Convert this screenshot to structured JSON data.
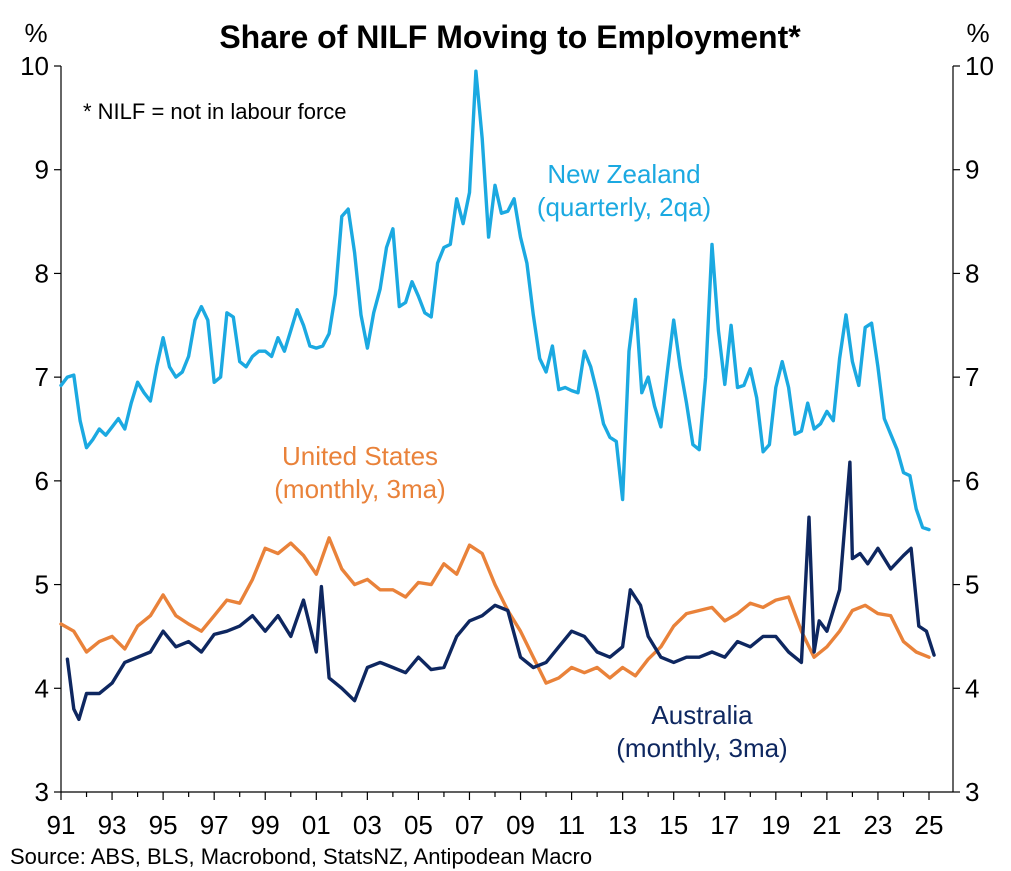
{
  "chart_data": {
    "type": "line",
    "title": "Share of NILF Moving to Employment*",
    "ylabel_left": "%",
    "ylabel_right": "%",
    "note": "* NILF = not in labour force",
    "source": "Source: ABS, BLS, Macrobond, StatsNZ, Antipodean Macro",
    "ylim": [
      3,
      10
    ],
    "yticks": [
      "3",
      "4",
      "5",
      "6",
      "7",
      "8",
      "9",
      "10"
    ],
    "xlim": [
      1991,
      2026
    ],
    "xticks": [
      "91",
      "93",
      "95",
      "97",
      "99",
      "01",
      "03",
      "05",
      "07",
      "09",
      "11",
      "13",
      "15",
      "17",
      "19",
      "21",
      "23",
      "25"
    ],
    "grid": false,
    "series": [
      {
        "name": "New Zealand (quarterly, 2qa)",
        "label_lines": [
          "New Zealand",
          "(quarterly, 2qa)"
        ],
        "color": "#1ba9e1",
        "x": [
          1991.0,
          1991.25,
          1991.5,
          1991.75,
          1992.0,
          1992.25,
          1992.5,
          1992.75,
          1993.0,
          1993.25,
          1993.5,
          1993.75,
          1994.0,
          1994.25,
          1994.5,
          1994.75,
          1995.0,
          1995.25,
          1995.5,
          1995.75,
          1996.0,
          1996.25,
          1996.5,
          1996.75,
          1997.0,
          1997.25,
          1997.5,
          1997.75,
          1998.0,
          1998.25,
          1998.5,
          1998.75,
          1999.0,
          1999.25,
          1999.5,
          1999.75,
          2000.0,
          2000.25,
          2000.5,
          2000.75,
          2001.0,
          2001.25,
          2001.5,
          2001.75,
          2002.0,
          2002.25,
          2002.5,
          2002.75,
          2003.0,
          2003.25,
          2003.5,
          2003.75,
          2004.0,
          2004.25,
          2004.5,
          2004.75,
          2005.0,
          2005.25,
          2005.5,
          2005.75,
          2006.0,
          2006.25,
          2006.5,
          2006.75,
          2007.0,
          2007.25,
          2007.5,
          2007.75,
          2008.0,
          2008.25,
          2008.5,
          2008.75,
          2009.0,
          2009.25,
          2009.5,
          2009.75,
          2010.0,
          2010.25,
          2010.5,
          2010.75,
          2011.0,
          2011.25,
          2011.5,
          2011.75,
          2012.0,
          2012.25,
          2012.5,
          2012.75,
          2013.0,
          2013.25,
          2013.5,
          2013.75,
          2014.0,
          2014.25,
          2014.5,
          2014.75,
          2015.0,
          2015.25,
          2015.5,
          2015.75,
          2016.0,
          2016.25,
          2016.5,
          2016.75,
          2017.0,
          2017.25,
          2017.5,
          2017.75,
          2018.0,
          2018.25,
          2018.5,
          2018.75,
          2019.0,
          2019.25,
          2019.5,
          2019.75,
          2020.0,
          2020.25,
          2020.5,
          2020.75,
          2021.0,
          2021.25,
          2021.5,
          2021.75,
          2022.0,
          2022.25,
          2022.5,
          2022.75,
          2023.0,
          2023.25,
          2023.5,
          2023.75,
          2024.0,
          2024.25,
          2024.5,
          2024.75,
          2025.0
        ],
        "values": [
          6.92,
          7.0,
          7.02,
          6.58,
          6.32,
          6.4,
          6.5,
          6.44,
          6.52,
          6.6,
          6.5,
          6.75,
          6.95,
          6.85,
          6.77,
          7.1,
          7.38,
          7.1,
          7.0,
          7.05,
          7.2,
          7.55,
          7.68,
          7.55,
          6.95,
          7.0,
          7.62,
          7.58,
          7.15,
          7.1,
          7.2,
          7.25,
          7.25,
          7.2,
          7.38,
          7.25,
          7.45,
          7.65,
          7.5,
          7.3,
          7.28,
          7.3,
          7.42,
          7.8,
          8.55,
          8.62,
          8.2,
          7.6,
          7.28,
          7.62,
          7.85,
          8.25,
          8.43,
          7.68,
          7.72,
          7.92,
          7.78,
          7.62,
          7.58,
          8.1,
          8.25,
          8.28,
          8.72,
          8.48,
          8.78,
          9.95,
          9.3,
          8.35,
          8.85,
          8.58,
          8.6,
          8.72,
          8.35,
          8.1,
          7.6,
          7.18,
          7.05,
          7.3,
          6.88,
          6.9,
          6.87,
          6.85,
          7.25,
          7.1,
          6.85,
          6.55,
          6.42,
          6.38,
          5.82,
          7.25,
          7.75,
          6.85,
          7.0,
          6.72,
          6.52,
          7.05,
          7.55,
          7.1,
          6.75,
          6.35,
          6.3,
          7.0,
          8.28,
          7.45,
          6.93,
          7.5,
          6.9,
          6.92,
          7.08,
          6.8,
          6.28,
          6.35,
          6.9,
          7.15,
          6.9,
          6.45,
          6.48,
          6.75,
          6.5,
          6.55,
          6.67,
          6.58,
          7.18,
          7.6,
          7.15,
          6.92,
          7.48,
          7.52,
          7.1,
          6.6,
          6.45,
          6.3,
          6.08,
          6.05,
          5.73,
          5.55,
          5.53
        ]
      },
      {
        "name": "United States (monthly, 3ma)",
        "label_lines": [
          "United States",
          "(monthly, 3ma)"
        ],
        "color": "#e9823a",
        "x": [
          1991.0,
          1991.5,
          1992.0,
          1992.5,
          1993.0,
          1993.5,
          1994.0,
          1994.5,
          1995.0,
          1995.5,
          1996.0,
          1996.5,
          1997.0,
          1997.5,
          1998.0,
          1998.5,
          1999.0,
          1999.5,
          2000.0,
          2000.5,
          2001.0,
          2001.5,
          2002.0,
          2002.5,
          2003.0,
          2003.5,
          2004.0,
          2004.5,
          2005.0,
          2005.5,
          2006.0,
          2006.5,
          2007.0,
          2007.5,
          2008.0,
          2008.5,
          2009.0,
          2009.5,
          2010.0,
          2010.5,
          2011.0,
          2011.5,
          2012.0,
          2012.5,
          2013.0,
          2013.5,
          2014.0,
          2014.5,
          2015.0,
          2015.5,
          2016.0,
          2016.5,
          2017.0,
          2017.5,
          2018.0,
          2018.5,
          2019.0,
          2019.5,
          2020.0,
          2020.5,
          2021.0,
          2021.5,
          2022.0,
          2022.5,
          2023.0,
          2023.5,
          2024.0,
          2024.5,
          2025.0
        ],
        "values": [
          4.62,
          4.55,
          4.35,
          4.45,
          4.5,
          4.38,
          4.6,
          4.7,
          4.9,
          4.7,
          4.62,
          4.55,
          4.7,
          4.85,
          4.82,
          5.05,
          5.35,
          5.3,
          5.4,
          5.28,
          5.1,
          5.45,
          5.15,
          5.0,
          5.05,
          4.95,
          4.95,
          4.88,
          5.02,
          5.0,
          5.2,
          5.1,
          5.38,
          5.3,
          5.0,
          4.75,
          4.55,
          4.3,
          4.05,
          4.1,
          4.2,
          4.15,
          4.2,
          4.1,
          4.2,
          4.12,
          4.28,
          4.4,
          4.6,
          4.72,
          4.75,
          4.78,
          4.65,
          4.72,
          4.82,
          4.78,
          4.85,
          4.88,
          4.55,
          4.3,
          4.4,
          4.55,
          4.75,
          4.8,
          4.72,
          4.7,
          4.45,
          4.35,
          4.3
        ]
      },
      {
        "name": "Australia (monthly, 3ma)",
        "label_lines": [
          "Australia",
          "(monthly, 3ma)"
        ],
        "color": "#0e2760",
        "x": [
          1991.25,
          1991.5,
          1991.7,
          1992.0,
          1992.5,
          1993.0,
          1993.5,
          1994.0,
          1994.5,
          1995.0,
          1995.5,
          1996.0,
          1996.5,
          1997.0,
          1997.5,
          1998.0,
          1998.5,
          1999.0,
          1999.5,
          2000.0,
          2000.5,
          2001.0,
          2001.2,
          2001.5,
          2002.0,
          2002.5,
          2003.0,
          2003.5,
          2004.0,
          2004.5,
          2005.0,
          2005.5,
          2006.0,
          2006.5,
          2007.0,
          2007.5,
          2008.0,
          2008.5,
          2009.0,
          2009.5,
          2010.0,
          2010.5,
          2011.0,
          2011.5,
          2012.0,
          2012.5,
          2013.0,
          2013.3,
          2013.7,
          2014.0,
          2014.5,
          2015.0,
          2015.5,
          2016.0,
          2016.5,
          2017.0,
          2017.5,
          2018.0,
          2018.5,
          2019.0,
          2019.5,
          2020.0,
          2020.3,
          2020.5,
          2020.7,
          2021.0,
          2021.5,
          2021.9,
          2022.0,
          2022.3,
          2022.6,
          2023.0,
          2023.5,
          2024.0,
          2024.3,
          2024.6,
          2024.9,
          2025.2
        ],
        "values": [
          4.28,
          3.8,
          3.7,
          3.95,
          3.95,
          4.05,
          4.25,
          4.3,
          4.35,
          4.55,
          4.4,
          4.45,
          4.35,
          4.52,
          4.55,
          4.6,
          4.7,
          4.55,
          4.7,
          4.5,
          4.85,
          4.35,
          4.98,
          4.1,
          4.0,
          3.88,
          4.2,
          4.25,
          4.2,
          4.15,
          4.3,
          4.18,
          4.2,
          4.5,
          4.65,
          4.7,
          4.8,
          4.75,
          4.3,
          4.2,
          4.25,
          4.4,
          4.55,
          4.5,
          4.35,
          4.3,
          4.4,
          4.95,
          4.8,
          4.5,
          4.3,
          4.25,
          4.3,
          4.3,
          4.35,
          4.3,
          4.45,
          4.4,
          4.5,
          4.5,
          4.35,
          4.25,
          5.65,
          4.35,
          4.65,
          4.55,
          4.95,
          6.18,
          5.25,
          5.3,
          5.2,
          5.35,
          5.15,
          5.28,
          5.35,
          4.6,
          4.55,
          4.32
        ]
      }
    ]
  }
}
